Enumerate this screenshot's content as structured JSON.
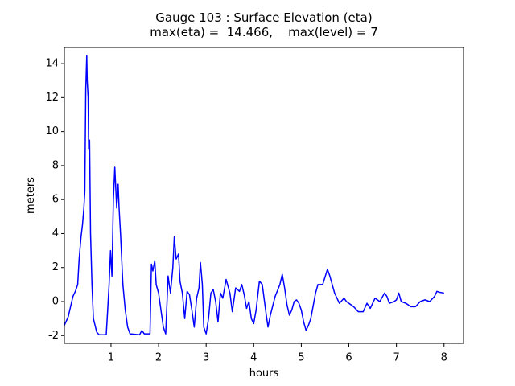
{
  "chart_data": {
    "type": "line",
    "title": "Gauge 103 : Surface Elevation (eta)",
    "subtitle": "max(eta) =  14.466,    max(level) = 7",
    "x_label": "hours",
    "y_label": "meters",
    "color": "#0000ff",
    "xlim": [
      0.02,
      8.41
    ],
    "ylim": [
      -2.46,
      14.95
    ],
    "xticks": [
      1,
      2,
      3,
      4,
      5,
      6,
      7,
      8
    ],
    "yticks": [
      -2,
      0,
      2,
      4,
      6,
      8,
      10,
      12,
      14
    ],
    "x": [
      0.02,
      0.1,
      0.15,
      0.2,
      0.25,
      0.3,
      0.33,
      0.37,
      0.4,
      0.43,
      0.45,
      0.47,
      0.49,
      0.5,
      0.52,
      0.53,
      0.55,
      0.57,
      0.6,
      0.63,
      0.7,
      0.75,
      0.9,
      0.93,
      0.96,
      0.99,
      1.02,
      1.05,
      1.08,
      1.12,
      1.15,
      1.17,
      1.2,
      1.25,
      1.3,
      1.35,
      1.4,
      1.6,
      1.65,
      1.7,
      1.82,
      1.85,
      1.88,
      1.92,
      1.95,
      2.0,
      2.05,
      2.1,
      2.15,
      2.2,
      2.25,
      2.3,
      2.33,
      2.37,
      2.42,
      2.45,
      2.5,
      2.55,
      2.6,
      2.65,
      2.7,
      2.75,
      2.8,
      2.85,
      2.88,
      2.92,
      2.95,
      3.0,
      3.05,
      3.1,
      3.15,
      3.2,
      3.25,
      3.3,
      3.35,
      3.42,
      3.5,
      3.55,
      3.62,
      3.7,
      3.75,
      3.8,
      3.85,
      3.9,
      3.95,
      4.0,
      4.05,
      4.12,
      4.18,
      4.25,
      4.3,
      4.35,
      4.45,
      4.55,
      4.6,
      4.65,
      4.7,
      4.75,
      4.8,
      4.85,
      4.9,
      4.95,
      5.0,
      5.05,
      5.1,
      5.15,
      5.2,
      5.3,
      5.35,
      5.45,
      5.55,
      5.6,
      5.7,
      5.8,
      5.9,
      5.95,
      6.1,
      6.2,
      6.3,
      6.38,
      6.45,
      6.55,
      6.65,
      6.75,
      6.8,
      6.85,
      6.95,
      7.0,
      7.05,
      7.1,
      7.2,
      7.3,
      7.4,
      7.5,
      7.6,
      7.7,
      7.8,
      7.85,
      7.9,
      8.0
    ],
    "values": [
      -1.4,
      -0.9,
      -0.3,
      0.3,
      0.6,
      1.0,
      2.5,
      3.8,
      4.5,
      5.5,
      6.5,
      12.5,
      14.466,
      13.0,
      12.0,
      9.0,
      9.5,
      4.0,
      1.0,
      -1.0,
      -1.8,
      -1.95,
      -1.95,
      -0.5,
      1.0,
      3.0,
      1.5,
      6.0,
      7.9,
      5.5,
      6.9,
      5.5,
      4.0,
      1.0,
      -0.5,
      -1.5,
      -1.9,
      -1.95,
      -1.7,
      -1.9,
      -1.9,
      2.2,
      1.8,
      2.4,
      1.0,
      0.5,
      -0.5,
      -1.5,
      -1.9,
      1.5,
      0.5,
      2.0,
      3.8,
      2.5,
      2.8,
      1.2,
      0.5,
      -1.0,
      0.6,
      0.4,
      -0.5,
      -1.5,
      0.2,
      0.8,
      2.3,
      1.0,
      -1.5,
      -1.9,
      -1.0,
      0.5,
      0.7,
      0.0,
      -1.2,
      0.5,
      0.2,
      1.3,
      0.5,
      -0.6,
      0.8,
      0.6,
      1.0,
      0.4,
      -0.4,
      0.0,
      -1.0,
      -1.3,
      -0.5,
      1.2,
      1.0,
      -0.5,
      -1.5,
      -0.8,
      0.3,
      1.0,
      1.6,
      0.8,
      -0.2,
      -0.8,
      -0.5,
      0.0,
      0.1,
      -0.1,
      -0.5,
      -1.2,
      -1.7,
      -1.4,
      -1.0,
      0.5,
      1.0,
      1.0,
      1.9,
      1.5,
      0.5,
      -0.1,
      0.2,
      0.0,
      -0.3,
      -0.6,
      -0.6,
      -0.1,
      -0.4,
      0.2,
      0.0,
      0.5,
      0.3,
      -0.1,
      0.0,
      0.1,
      0.5,
      0.0,
      -0.1,
      -0.3,
      -0.3,
      0.0,
      0.1,
      0.0,
      0.3,
      0.6,
      0.55,
      0.5
    ]
  }
}
